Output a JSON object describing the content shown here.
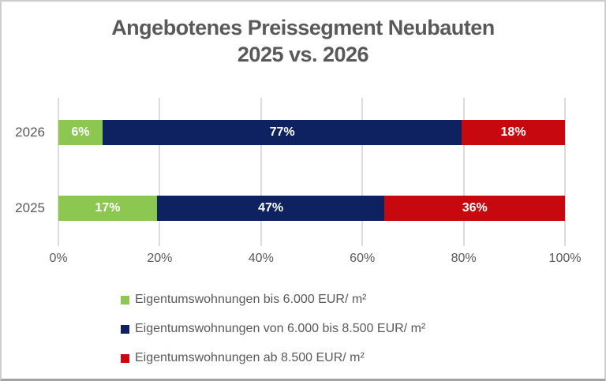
{
  "title": {
    "line1": "Angebotenes Preissegment Neubauten",
    "line2": "2025 vs. 2026"
  },
  "chart_data": {
    "type": "bar",
    "orientation": "horizontal",
    "stacked": true,
    "title": "Angebotenes Preissegment Neubauten 2025 vs. 2026",
    "categories": [
      "2026",
      "2025"
    ],
    "series": [
      {
        "name": "Eigentumswohnungen bis 6.000 EUR/ m²",
        "color": "#8CC752",
        "values": [
          6,
          17
        ]
      },
      {
        "name": "Eigentumswohnungen von 6.000 bis 8.500 EUR/ m²",
        "color": "#0E2262",
        "values": [
          77,
          47
        ]
      },
      {
        "name": "Eigentumswohnungen ab 8.500 EUR/ m²",
        "color": "#C7090F",
        "values": [
          18,
          36
        ]
      }
    ],
    "x_ticks": [
      "0%",
      "20%",
      "40%",
      "60%",
      "80%",
      "100%"
    ],
    "xlim": [
      0,
      100
    ],
    "value_suffix": "%",
    "grid": "vertical",
    "legend_position": "bottom"
  },
  "colors": {
    "title_text": "#595959",
    "axis_text": "#595959",
    "gridline": "#DCDCDC",
    "bar_label_text": "#FFFFFF"
  }
}
